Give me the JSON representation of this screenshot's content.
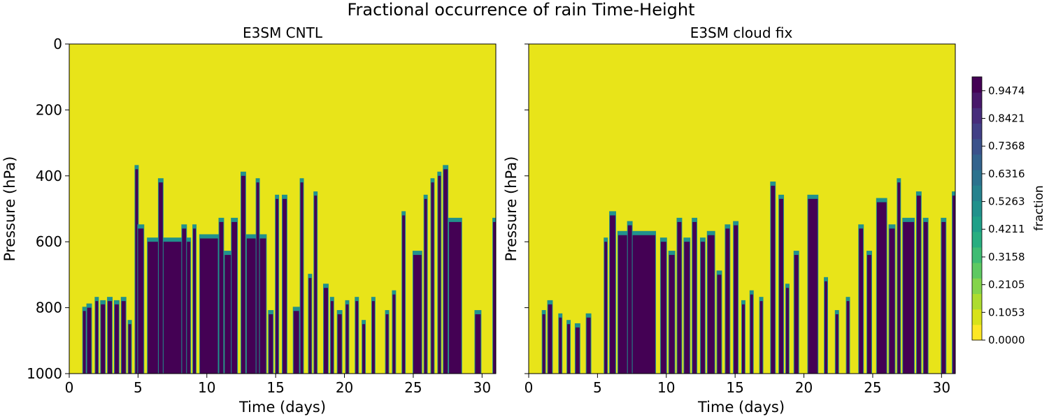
{
  "figure": {
    "suptitle": "Fractional occurrence of rain Time-Height"
  },
  "colors": {
    "yellow": "#e8e419",
    "purple": "#440154",
    "colormap": [
      "#fde725",
      "#d8e219",
      "#addc30",
      "#84d44b",
      "#5ec962",
      "#3fbc73",
      "#28ae80",
      "#1fa088",
      "#21918c",
      "#26828e",
      "#2c728e",
      "#33638d",
      "#3b528b",
      "#424086",
      "#472d7b",
      "#48186a",
      "#440154"
    ]
  },
  "chart_data": [
    {
      "type": "heatmap",
      "title": "E3SM CNTL",
      "xlabel": "Time (days)",
      "ylabel": "Pressure (hPa)",
      "xlim": [
        0,
        31
      ],
      "ylim": [
        1000,
        0
      ],
      "xticks": [
        "0",
        "5",
        "10",
        "15",
        "20",
        "25",
        "30"
      ],
      "xtick_values": [
        0,
        5,
        10,
        15,
        20,
        25,
        30
      ],
      "yticks": [
        "0",
        "200",
        "400",
        "600",
        "800",
        "1000"
      ],
      "ytick_values": [
        0,
        200,
        400,
        600,
        800,
        1000
      ],
      "show_ytick_labels": true,
      "rain_events": [
        {
          "t0": 1.0,
          "t1": 1.2,
          "top": 810
        },
        {
          "t0": 1.3,
          "t1": 1.6,
          "top": 800
        },
        {
          "t0": 1.9,
          "t1": 2.1,
          "top": 780
        },
        {
          "t0": 2.3,
          "t1": 2.6,
          "top": 790
        },
        {
          "t0": 2.8,
          "t1": 3.1,
          "top": 780
        },
        {
          "t0": 3.3,
          "t1": 3.6,
          "top": 790
        },
        {
          "t0": 3.8,
          "t1": 4.1,
          "top": 780
        },
        {
          "t0": 4.3,
          "t1": 4.5,
          "top": 850
        },
        {
          "t0": 4.8,
          "t1": 5.0,
          "top": 380
        },
        {
          "t0": 5.0,
          "t1": 5.4,
          "top": 560
        },
        {
          "t0": 5.7,
          "t1": 8.8,
          "top": 600
        },
        {
          "t0": 6.5,
          "t1": 6.8,
          "top": 420
        },
        {
          "t0": 8.2,
          "t1": 8.5,
          "top": 560
        },
        {
          "t0": 9.0,
          "t1": 9.2,
          "top": 560
        },
        {
          "t0": 9.5,
          "t1": 10.8,
          "top": 590
        },
        {
          "t0": 10.9,
          "t1": 11.2,
          "top": 540
        },
        {
          "t0": 11.3,
          "t1": 11.8,
          "top": 640
        },
        {
          "t0": 11.8,
          "t1": 12.2,
          "top": 540
        },
        {
          "t0": 12.5,
          "t1": 12.8,
          "top": 400
        },
        {
          "t0": 12.9,
          "t1": 14.3,
          "top": 590
        },
        {
          "t0": 13.6,
          "t1": 13.8,
          "top": 420
        },
        {
          "t0": 14.5,
          "t1": 14.8,
          "top": 820
        },
        {
          "t0": 15.0,
          "t1": 15.2,
          "top": 470
        },
        {
          "t0": 15.5,
          "t1": 15.8,
          "top": 470
        },
        {
          "t0": 16.3,
          "t1": 16.7,
          "top": 810
        },
        {
          "t0": 16.8,
          "t1": 17.0,
          "top": 420
        },
        {
          "t0": 17.4,
          "t1": 17.6,
          "top": 710
        },
        {
          "t0": 17.8,
          "t1": 18.0,
          "top": 460
        },
        {
          "t0": 18.5,
          "t1": 18.8,
          "top": 740
        },
        {
          "t0": 19.0,
          "t1": 19.2,
          "top": 780
        },
        {
          "t0": 19.5,
          "t1": 19.8,
          "top": 820
        },
        {
          "t0": 20.1,
          "t1": 20.3,
          "top": 790
        },
        {
          "t0": 20.8,
          "t1": 21.0,
          "top": 780
        },
        {
          "t0": 21.3,
          "t1": 21.5,
          "top": 850
        },
        {
          "t0": 22.0,
          "t1": 22.2,
          "top": 780
        },
        {
          "t0": 23.0,
          "t1": 23.2,
          "top": 820
        },
        {
          "t0": 23.5,
          "t1": 23.7,
          "top": 760
        },
        {
          "t0": 24.2,
          "t1": 24.4,
          "top": 520
        },
        {
          "t0": 25.0,
          "t1": 25.6,
          "top": 640
        },
        {
          "t0": 25.8,
          "t1": 26.0,
          "top": 470
        },
        {
          "t0": 26.3,
          "t1": 26.5,
          "top": 420
        },
        {
          "t0": 26.8,
          "t1": 27.0,
          "top": 400
        },
        {
          "t0": 27.2,
          "t1": 27.5,
          "top": 380
        },
        {
          "t0": 27.6,
          "t1": 28.5,
          "top": 540
        },
        {
          "t0": 29.5,
          "t1": 29.9,
          "top": 820
        },
        {
          "t0": 30.8,
          "t1": 31.0,
          "top": 540
        }
      ]
    },
    {
      "type": "heatmap",
      "title": "E3SM cloud fix",
      "xlabel": "Time (days)",
      "ylabel": "Pressure (hPa)",
      "xlim": [
        0,
        31
      ],
      "ylim": [
        1000,
        0
      ],
      "xticks": [
        "0",
        "5",
        "10",
        "15",
        "20",
        "25",
        "30"
      ],
      "xtick_values": [
        0,
        5,
        10,
        15,
        20,
        25,
        30
      ],
      "yticks": [
        "0",
        "200",
        "400",
        "600",
        "800",
        "1000"
      ],
      "ytick_values": [
        0,
        200,
        400,
        600,
        800,
        1000
      ],
      "show_ytick_labels": false,
      "rain_events": [
        {
          "t0": 1.0,
          "t1": 1.2,
          "top": 820
        },
        {
          "t0": 1.4,
          "t1": 1.7,
          "top": 790
        },
        {
          "t0": 2.2,
          "t1": 2.4,
          "top": 830
        },
        {
          "t0": 2.8,
          "t1": 3.0,
          "top": 850
        },
        {
          "t0": 3.4,
          "t1": 3.7,
          "top": 860
        },
        {
          "t0": 4.2,
          "t1": 4.5,
          "top": 830
        },
        {
          "t0": 5.5,
          "t1": 5.7,
          "top": 600
        },
        {
          "t0": 5.9,
          "t1": 6.3,
          "top": 520
        },
        {
          "t0": 6.5,
          "t1": 9.2,
          "top": 580
        },
        {
          "t0": 7.2,
          "t1": 7.5,
          "top": 550
        },
        {
          "t0": 9.6,
          "t1": 10.0,
          "top": 600
        },
        {
          "t0": 10.2,
          "t1": 10.6,
          "top": 640
        },
        {
          "t0": 10.8,
          "t1": 11.1,
          "top": 540
        },
        {
          "t0": 11.3,
          "t1": 11.7,
          "top": 600
        },
        {
          "t0": 11.9,
          "t1": 12.2,
          "top": 540
        },
        {
          "t0": 12.5,
          "t1": 12.8,
          "top": 600
        },
        {
          "t0": 13.0,
          "t1": 13.5,
          "top": 580
        },
        {
          "t0": 13.7,
          "t1": 14.0,
          "top": 700
        },
        {
          "t0": 14.3,
          "t1": 14.6,
          "top": 560
        },
        {
          "t0": 14.9,
          "t1": 15.2,
          "top": 550
        },
        {
          "t0": 15.5,
          "t1": 15.7,
          "top": 790
        },
        {
          "t0": 16.1,
          "t1": 16.3,
          "top": 760
        },
        {
          "t0": 16.8,
          "t1": 17.0,
          "top": 780
        },
        {
          "t0": 17.6,
          "t1": 17.9,
          "top": 430
        },
        {
          "t0": 18.2,
          "t1": 18.5,
          "top": 470
        },
        {
          "t0": 18.7,
          "t1": 18.9,
          "top": 740
        },
        {
          "t0": 19.3,
          "t1": 19.6,
          "top": 640
        },
        {
          "t0": 20.3,
          "t1": 21.0,
          "top": 470
        },
        {
          "t0": 21.5,
          "t1": 21.7,
          "top": 720
        },
        {
          "t0": 22.3,
          "t1": 22.5,
          "top": 820
        },
        {
          "t0": 23.1,
          "t1": 23.3,
          "top": 780
        },
        {
          "t0": 24.0,
          "t1": 24.3,
          "top": 560
        },
        {
          "t0": 24.6,
          "t1": 24.9,
          "top": 640
        },
        {
          "t0": 25.3,
          "t1": 26.0,
          "top": 480
        },
        {
          "t0": 26.2,
          "t1": 26.6,
          "top": 560
        },
        {
          "t0": 26.8,
          "t1": 27.0,
          "top": 420
        },
        {
          "t0": 27.2,
          "t1": 28.0,
          "top": 540
        },
        {
          "t0": 28.2,
          "t1": 28.5,
          "top": 460
        },
        {
          "t0": 28.7,
          "t1": 29.0,
          "top": 540
        },
        {
          "t0": 30.0,
          "t1": 30.3,
          "top": 540
        },
        {
          "t0": 30.8,
          "t1": 31.0,
          "top": 460
        }
      ]
    }
  ],
  "colorbar": {
    "label": "fraction",
    "range": [
      0,
      1
    ],
    "ticks": [
      "0.0000",
      "0.1053",
      "0.2105",
      "0.3158",
      "0.4211",
      "0.5263",
      "0.6316",
      "0.7368",
      "0.8421",
      "0.9474"
    ],
    "tick_values": [
      0.0,
      0.1053,
      0.2105,
      0.3158,
      0.4211,
      0.5263,
      0.6316,
      0.7368,
      0.8421,
      0.9474
    ]
  }
}
